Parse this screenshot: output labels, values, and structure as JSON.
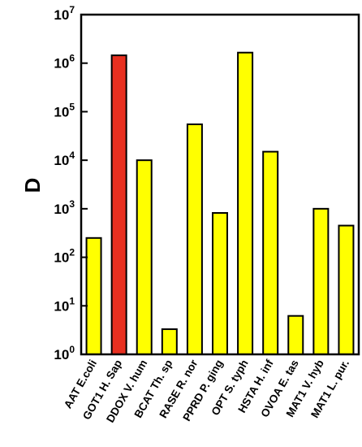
{
  "chart_data": {
    "type": "bar",
    "title": "",
    "xlabel": "",
    "ylabel": "D",
    "yscale": "log",
    "ylim": [
      1,
      10000000
    ],
    "y_ticks": [
      {
        "base": "10",
        "exp": "0"
      },
      {
        "base": "10",
        "exp": "1"
      },
      {
        "base": "10",
        "exp": "2"
      },
      {
        "base": "10",
        "exp": "3"
      },
      {
        "base": "10",
        "exp": "4"
      },
      {
        "base": "10",
        "exp": "5"
      },
      {
        "base": "10",
        "exp": "6"
      },
      {
        "base": "10",
        "exp": "7"
      }
    ],
    "categories": [
      "AAT E.coli",
      "GOT1 H. Sap",
      "DDOX V. hum",
      "BCAT Th. sp",
      "RASE R. nor",
      "PPRD P. ging",
      "OPT S. typh",
      "HSTA H. inf",
      "OVOA E. tas",
      "MAT1 V. hyb",
      "MAT1 L. pur."
    ],
    "values": [
      250,
      1450000,
      10000,
      3.3,
      55000,
      820,
      1650000,
      15000,
      6.2,
      1000,
      450
    ],
    "colors": [
      "#ffff00",
      "#e83020",
      "#ffff00",
      "#ffff00",
      "#ffff00",
      "#ffff00",
      "#ffff00",
      "#ffff00",
      "#ffff00",
      "#ffff00",
      "#ffff00"
    ],
    "grid": false,
    "legend": "none"
  }
}
